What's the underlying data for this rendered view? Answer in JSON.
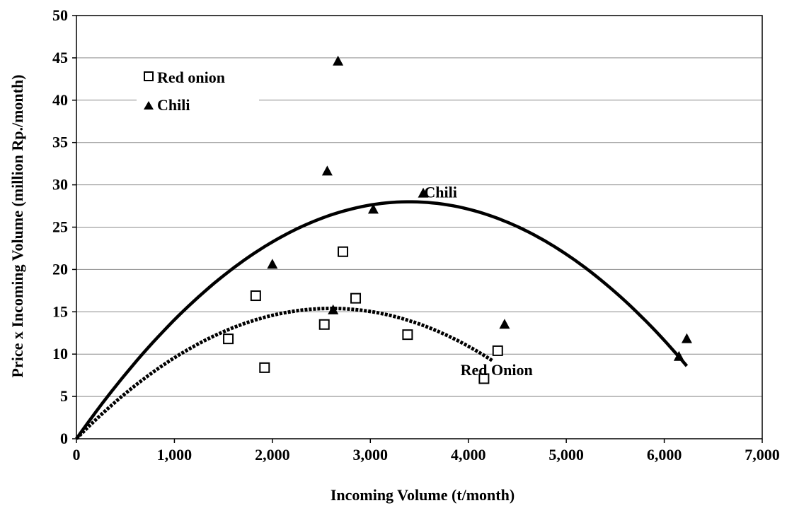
{
  "chart_data": {
    "type": "scatter",
    "xlabel": "Incoming Volume  (t/month)",
    "ylabel": "Price x  Incoming Volume  (million Rp./month)",
    "xlim": [
      0,
      7000
    ],
    "ylim": [
      0,
      50
    ],
    "x_ticks": [
      0,
      1000,
      2000,
      3000,
      4000,
      5000,
      6000,
      7000
    ],
    "x_tick_labels": [
      "0",
      "1,000",
      "2,000",
      "3,000",
      "4,000",
      "5,000",
      "6,000",
      "7,000"
    ],
    "y_ticks": [
      0,
      5,
      10,
      15,
      20,
      25,
      30,
      35,
      40,
      45,
      50
    ],
    "y_tick_labels": [
      "0",
      "5",
      "10",
      "15",
      "20",
      "25",
      "30",
      "35",
      "40",
      "45",
      "50"
    ],
    "grid": "horizontal",
    "legend_position": "top-left",
    "series": [
      {
        "name": "Red onion",
        "marker": "open-square",
        "color": "#000000",
        "points": [
          {
            "x": 1550,
            "y": 11.8
          },
          {
            "x": 1830,
            "y": 16.9
          },
          {
            "x": 1920,
            "y": 8.4
          },
          {
            "x": 2530,
            "y": 13.5
          },
          {
            "x": 2720,
            "y": 22.1
          },
          {
            "x": 2850,
            "y": 16.6
          },
          {
            "x": 3380,
            "y": 12.3
          },
          {
            "x": 4160,
            "y": 7.1
          },
          {
            "x": 4300,
            "y": 10.4
          }
        ]
      },
      {
        "name": "Chili",
        "marker": "filled-triangle",
        "color": "#000000",
        "points": [
          {
            "x": 2000,
            "y": 20.6
          },
          {
            "x": 2560,
            "y": 31.6
          },
          {
            "x": 2620,
            "y": 15.2
          },
          {
            "x": 2670,
            "y": 44.6
          },
          {
            "x": 3030,
            "y": 27.1
          },
          {
            "x": 3540,
            "y": 29.0
          },
          {
            "x": 4370,
            "y": 13.5
          },
          {
            "x": 6150,
            "y": 9.7
          },
          {
            "x": 6230,
            "y": 11.8
          }
        ]
      }
    ],
    "trend_lines": [
      {
        "name": "Chili",
        "style": "solid",
        "x_range": [
          0,
          6230
        ],
        "peak": {
          "x": 3400,
          "y": 28.0
        }
      },
      {
        "name": "Red Onion",
        "style": "dotted",
        "x_range": [
          0,
          4250
        ],
        "peak": {
          "x": 2600,
          "y": 15.4
        }
      }
    ],
    "annotations": [
      {
        "text": "Chili",
        "x": 3550,
        "y": 28.5
      },
      {
        "text": "Red Onion",
        "x": 3920,
        "y": 7.5
      }
    ]
  }
}
